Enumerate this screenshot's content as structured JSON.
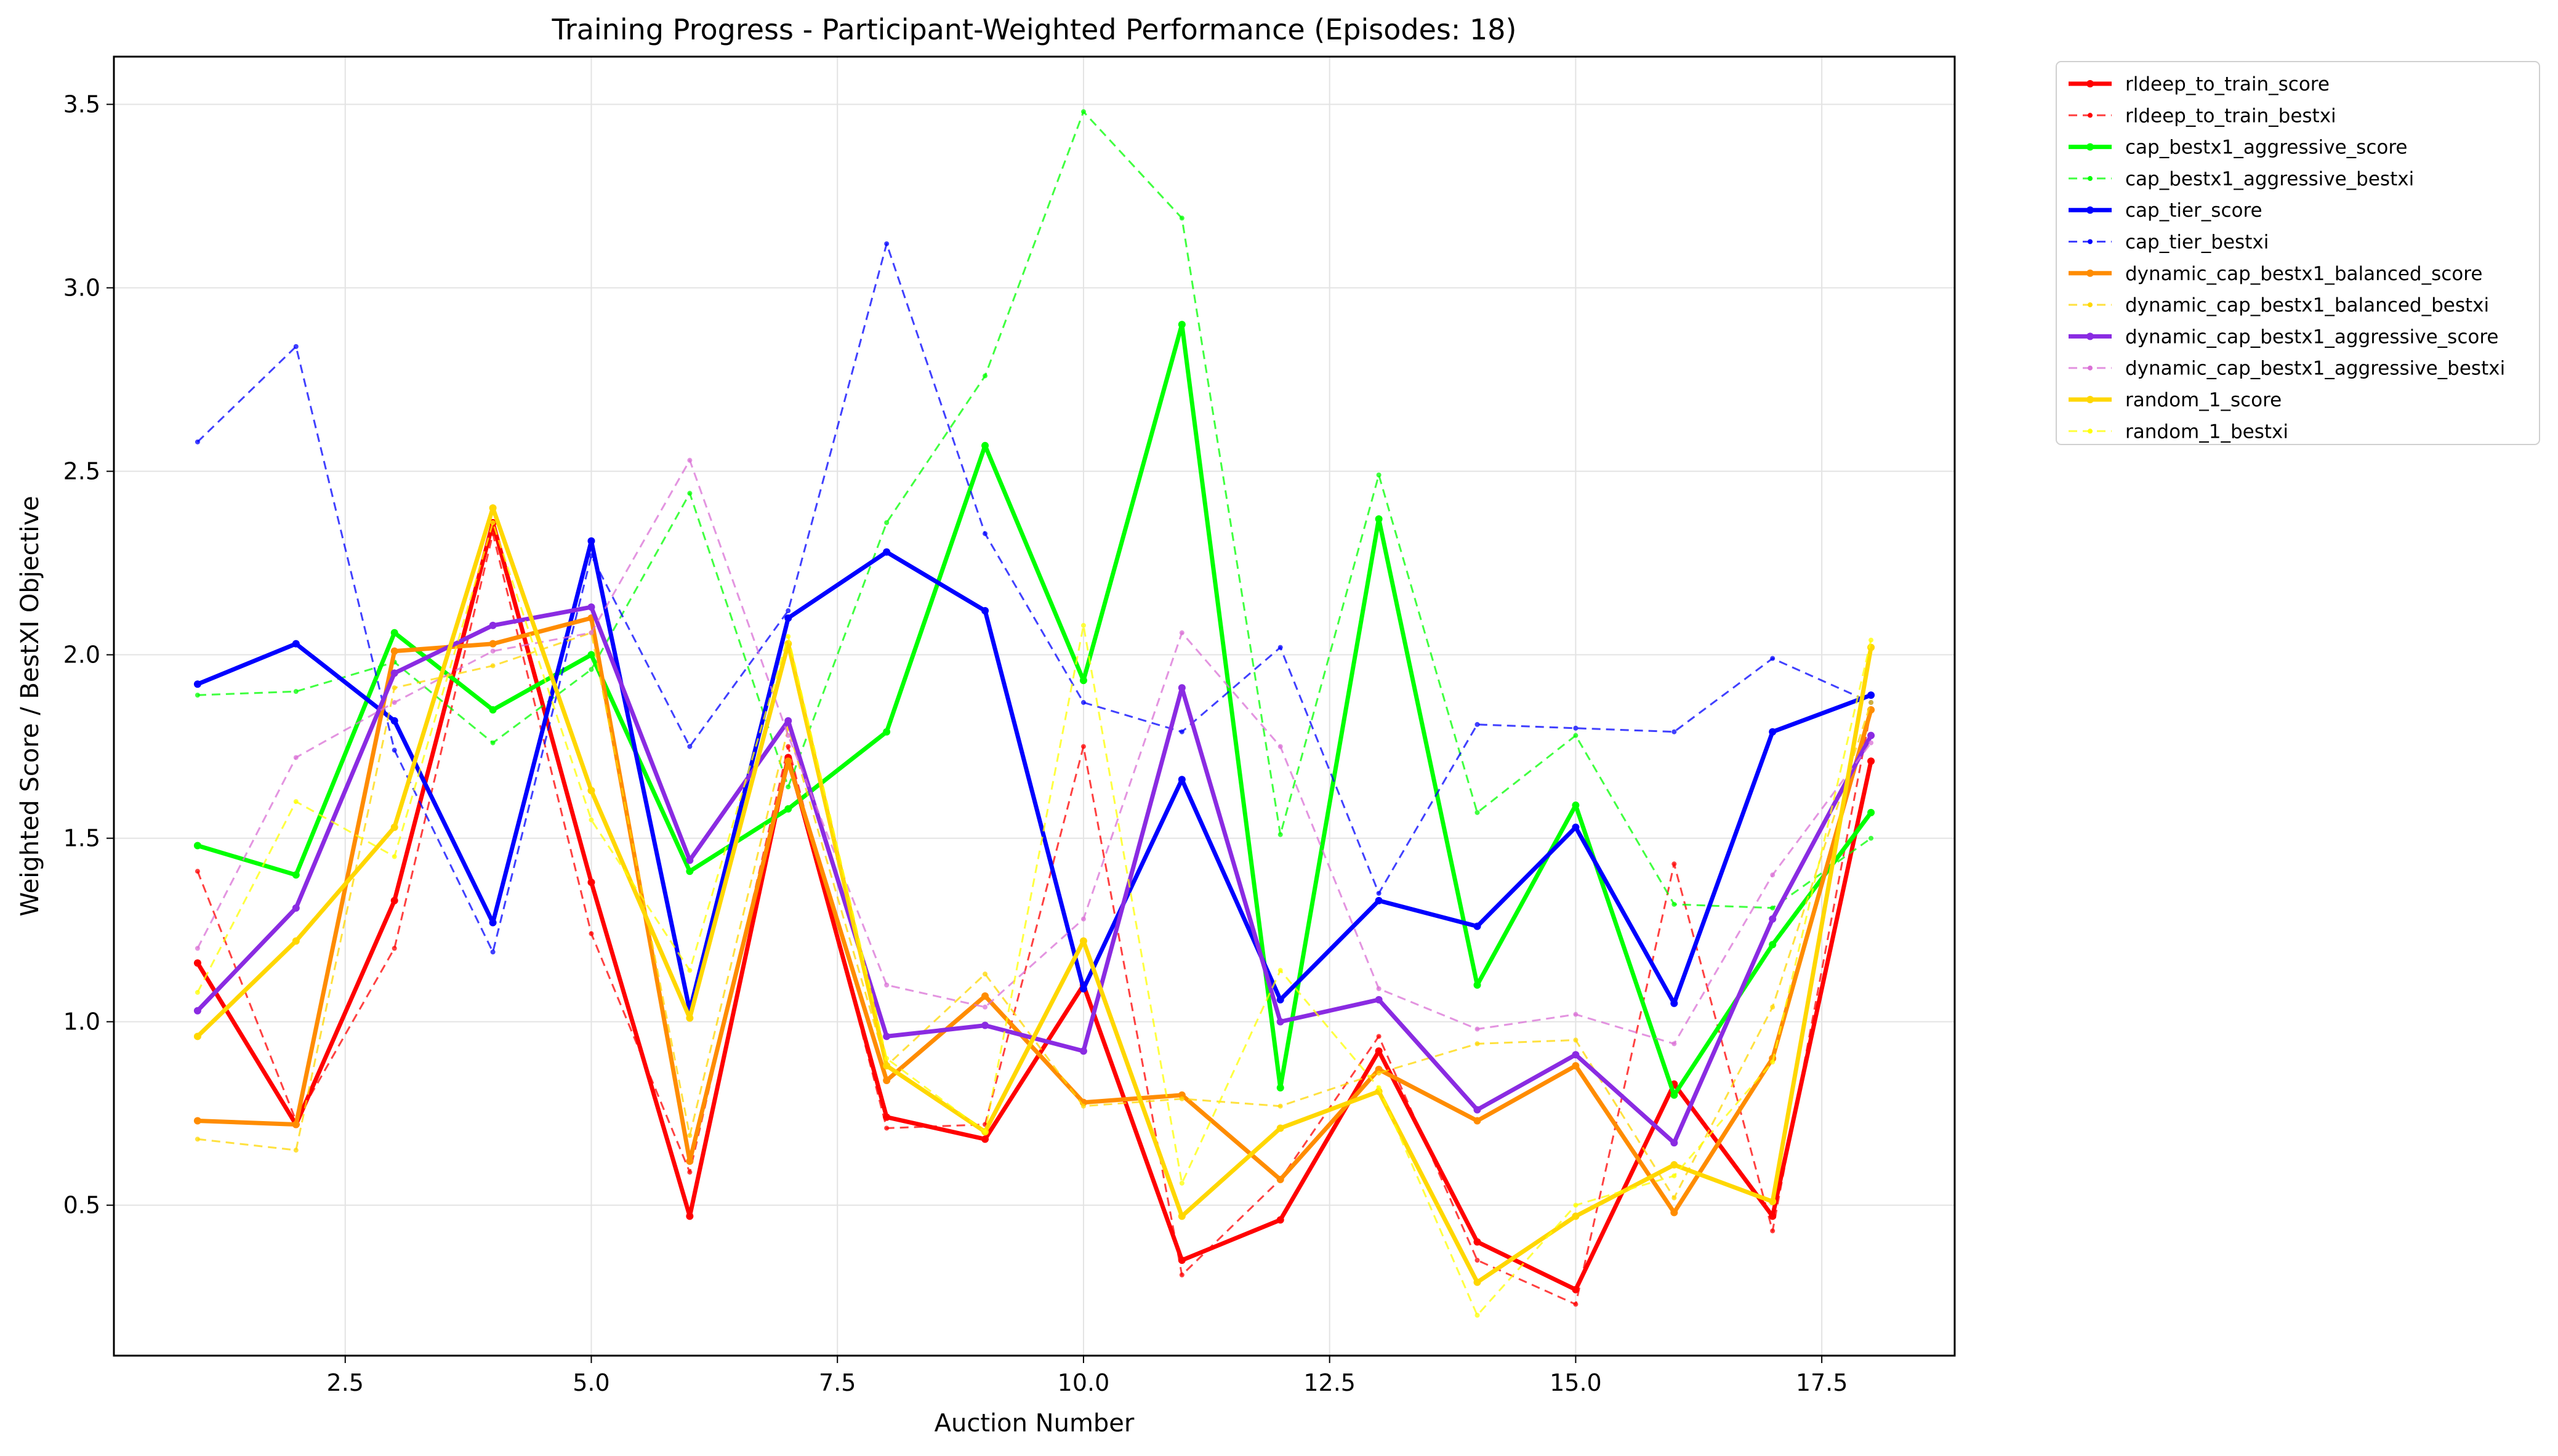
{
  "chart_data": {
    "type": "line",
    "title": "Training Progress - Participant-Weighted Performance (Episodes: 18)",
    "xlabel": "Auction Number",
    "ylabel": "Weighted Score / BestXI Objective",
    "xlim": [
      0.15,
      18.85
    ],
    "ylim": [
      0.09,
      3.63
    ],
    "xticks": [
      2.5,
      5.0,
      7.5,
      10.0,
      12.5,
      15.0,
      17.5
    ],
    "xtick_labels": [
      "2.5",
      "5.0",
      "7.5",
      "10.0",
      "12.5",
      "15.0",
      "17.5"
    ],
    "yticks": [
      0.5,
      1.0,
      1.5,
      2.0,
      2.5,
      3.0,
      3.5
    ],
    "ytick_labels": [
      "0.5",
      "1.0",
      "1.5",
      "2.0",
      "2.5",
      "3.0",
      "3.5"
    ],
    "grid": true,
    "legend_position": "outside-top-right",
    "x": [
      1,
      2,
      3,
      4,
      5,
      6,
      7,
      8,
      9,
      10,
      11,
      12,
      13,
      14,
      15,
      16,
      17,
      18
    ],
    "series": [
      {
        "name": "rldeep_to_train_score",
        "color": "#ff0000",
        "style": "solid",
        "values": [
          1.16,
          0.72,
          1.33,
          2.36,
          1.38,
          0.47,
          1.72,
          0.74,
          0.68,
          1.1,
          0.35,
          0.46,
          0.92,
          0.4,
          0.27,
          0.83,
          0.47,
          1.71
        ]
      },
      {
        "name": "rldeep_to_train_bestxi",
        "color": "#ff0000",
        "style": "dashed",
        "values": [
          1.41,
          0.73,
          1.2,
          2.33,
          1.24,
          0.59,
          1.75,
          0.71,
          0.72,
          1.75,
          0.31,
          0.57,
          0.96,
          0.35,
          0.23,
          1.43,
          0.43,
          1.85
        ]
      },
      {
        "name": "cap_bestx1_aggressive_score",
        "color": "#00ff00",
        "style": "solid",
        "values": [
          1.48,
          1.4,
          2.06,
          1.85,
          2.0,
          1.41,
          1.58,
          1.79,
          2.57,
          1.93,
          2.9,
          0.82,
          2.37,
          1.1,
          1.59,
          0.8,
          1.21,
          1.57
        ]
      },
      {
        "name": "cap_bestx1_aggressive_bestxi",
        "color": "#00ff00",
        "style": "dashed",
        "values": [
          1.89,
          1.9,
          1.98,
          1.76,
          1.96,
          2.44,
          1.64,
          2.36,
          2.76,
          3.48,
          3.19,
          1.51,
          2.49,
          1.57,
          1.78,
          1.32,
          1.31,
          1.5
        ]
      },
      {
        "name": "cap_tier_score",
        "color": "#0000ff",
        "style": "solid",
        "values": [
          1.92,
          2.03,
          1.82,
          1.27,
          2.31,
          1.03,
          2.1,
          2.28,
          2.12,
          1.09,
          1.66,
          1.06,
          1.33,
          1.26,
          1.53,
          1.05,
          1.79,
          1.89
        ]
      },
      {
        "name": "cap_tier_bestxi",
        "color": "#0000ff",
        "style": "dashed",
        "values": [
          2.58,
          2.84,
          1.74,
          1.19,
          2.27,
          1.75,
          2.12,
          3.12,
          2.33,
          1.87,
          1.79,
          2.02,
          1.35,
          1.81,
          1.8,
          1.79,
          1.99,
          1.87
        ]
      },
      {
        "name": "dynamic_cap_bestx1_balanced_score",
        "color": "#ff8c00",
        "style": "solid",
        "values": [
          0.73,
          0.72,
          2.01,
          2.03,
          2.1,
          0.62,
          1.71,
          0.84,
          1.07,
          0.78,
          0.8,
          0.57,
          0.87,
          0.73,
          0.88,
          0.48,
          0.9,
          1.85
        ]
      },
      {
        "name": "dynamic_cap_bestx1_balanced_bestxi",
        "color": "#ffd700",
        "style": "dashed",
        "values": [
          0.68,
          0.65,
          1.91,
          1.97,
          2.06,
          0.69,
          1.8,
          0.88,
          1.13,
          0.77,
          0.79,
          0.77,
          0.86,
          0.94,
          0.95,
          0.52,
          1.04,
          1.87
        ]
      },
      {
        "name": "dynamic_cap_bestx1_aggressive_score",
        "color": "#8a2be2",
        "style": "solid",
        "values": [
          1.03,
          1.31,
          1.95,
          2.08,
          2.13,
          1.44,
          1.82,
          0.96,
          0.99,
          0.92,
          1.91,
          1.0,
          1.06,
          0.76,
          0.91,
          0.67,
          1.28,
          1.78
        ]
      },
      {
        "name": "dynamic_cap_bestx1_aggressive_bestxi",
        "color": "#da70d6",
        "style": "dashed",
        "values": [
          1.2,
          1.72,
          1.87,
          2.01,
          2.06,
          2.53,
          1.78,
          1.1,
          1.04,
          1.28,
          2.06,
          1.75,
          1.09,
          0.98,
          1.02,
          0.94,
          1.4,
          1.76
        ]
      },
      {
        "name": "random_1_score",
        "color": "#ffd700",
        "style": "solid",
        "values": [
          0.96,
          1.22,
          1.53,
          2.4,
          1.63,
          1.01,
          2.03,
          0.88,
          0.7,
          1.22,
          0.47,
          0.71,
          0.81,
          0.29,
          0.47,
          0.61,
          0.51,
          2.02
        ]
      },
      {
        "name": "random_1_bestxi",
        "color": "#ffff00",
        "style": "dashed",
        "values": [
          1.08,
          1.6,
          1.45,
          2.36,
          1.55,
          1.14,
          2.05,
          0.9,
          0.7,
          2.08,
          0.56,
          1.14,
          0.82,
          0.2,
          0.5,
          0.58,
          0.89,
          2.04
        ]
      }
    ]
  }
}
